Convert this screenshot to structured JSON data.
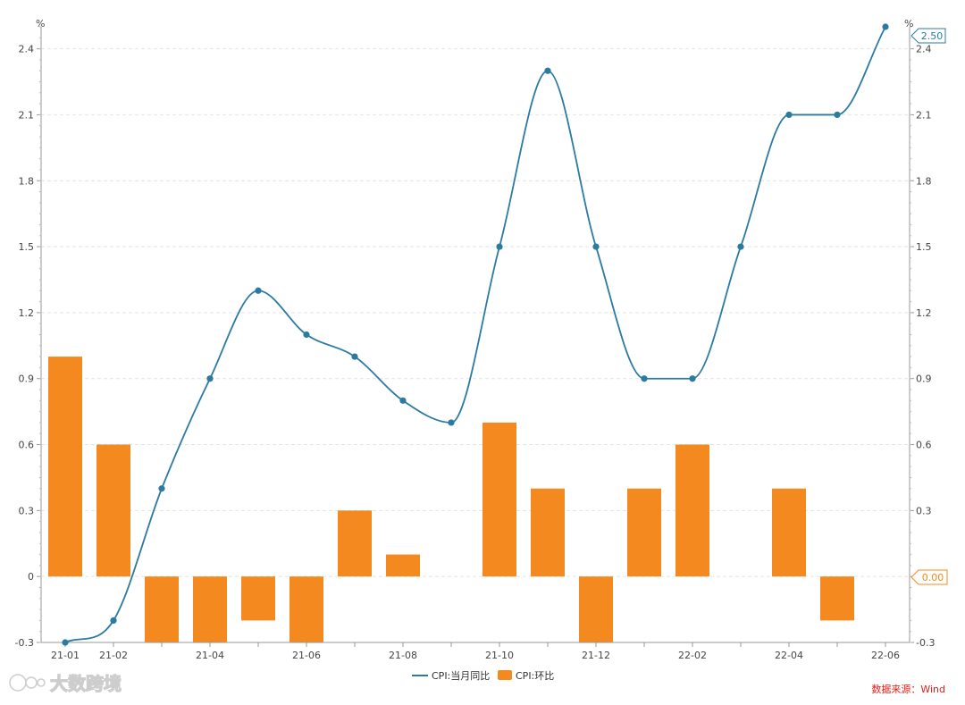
{
  "colors": {
    "line": "#2b7aa1",
    "bar": "#f4891f",
    "grid": "#e4e4e4",
    "axis": "#999999",
    "source": "#e0201a"
  },
  "chart_data": {
    "type": "bar+line",
    "categories": [
      "21-01",
      "21-02",
      "21-03",
      "21-04",
      "21-05",
      "21-06",
      "21-07",
      "21-08",
      "21-09",
      "21-10",
      "21-11",
      "21-12",
      "22-01",
      "22-02",
      "22-03",
      "22-04",
      "22-05",
      "22-06"
    ],
    "x_tick_labels": [
      "21-01",
      "21-02",
      "21-04",
      "21-06",
      "21-08",
      "21-10",
      "21-12",
      "22-02",
      "22-04",
      "22-06"
    ],
    "series": [
      {
        "name": "CPI:当月同比",
        "kind": "line",
        "values": [
          -0.3,
          -0.2,
          0.4,
          0.9,
          1.3,
          1.1,
          1.0,
          0.8,
          0.7,
          1.5,
          2.3,
          1.5,
          0.9,
          0.9,
          1.5,
          2.1,
          2.1,
          2.5
        ]
      },
      {
        "name": "CPI:环比",
        "kind": "bar",
        "values": [
          1.0,
          0.6,
          -0.3,
          -0.3,
          -0.2,
          -0.3,
          0.3,
          0.1,
          0.0,
          0.7,
          0.4,
          -0.3,
          0.4,
          0.6,
          0.0,
          0.4,
          -0.2,
          0.0
        ]
      }
    ],
    "y_left": {
      "unit": "%",
      "ticks": [
        "-0.3",
        "0",
        "0.3",
        "0.6",
        "0.9",
        "1.2",
        "1.5",
        "1.8",
        "2.1",
        "2.4"
      ],
      "range": [
        -0.3,
        2.5
      ]
    },
    "y_right": {
      "unit": "%",
      "ticks": [
        "-0.3",
        "0",
        "0.3",
        "0.6",
        "0.9",
        "1.2",
        "1.5",
        "1.8",
        "2.1",
        "2.4"
      ],
      "range": [
        -0.3,
        2.5
      ]
    },
    "end_labels": {
      "line": "2.50",
      "bar": "0.00"
    },
    "grid": true,
    "legend_position": "bottom-center"
  },
  "footer": {
    "source": "数据来源：Wind",
    "watermark": "大数跨境"
  }
}
